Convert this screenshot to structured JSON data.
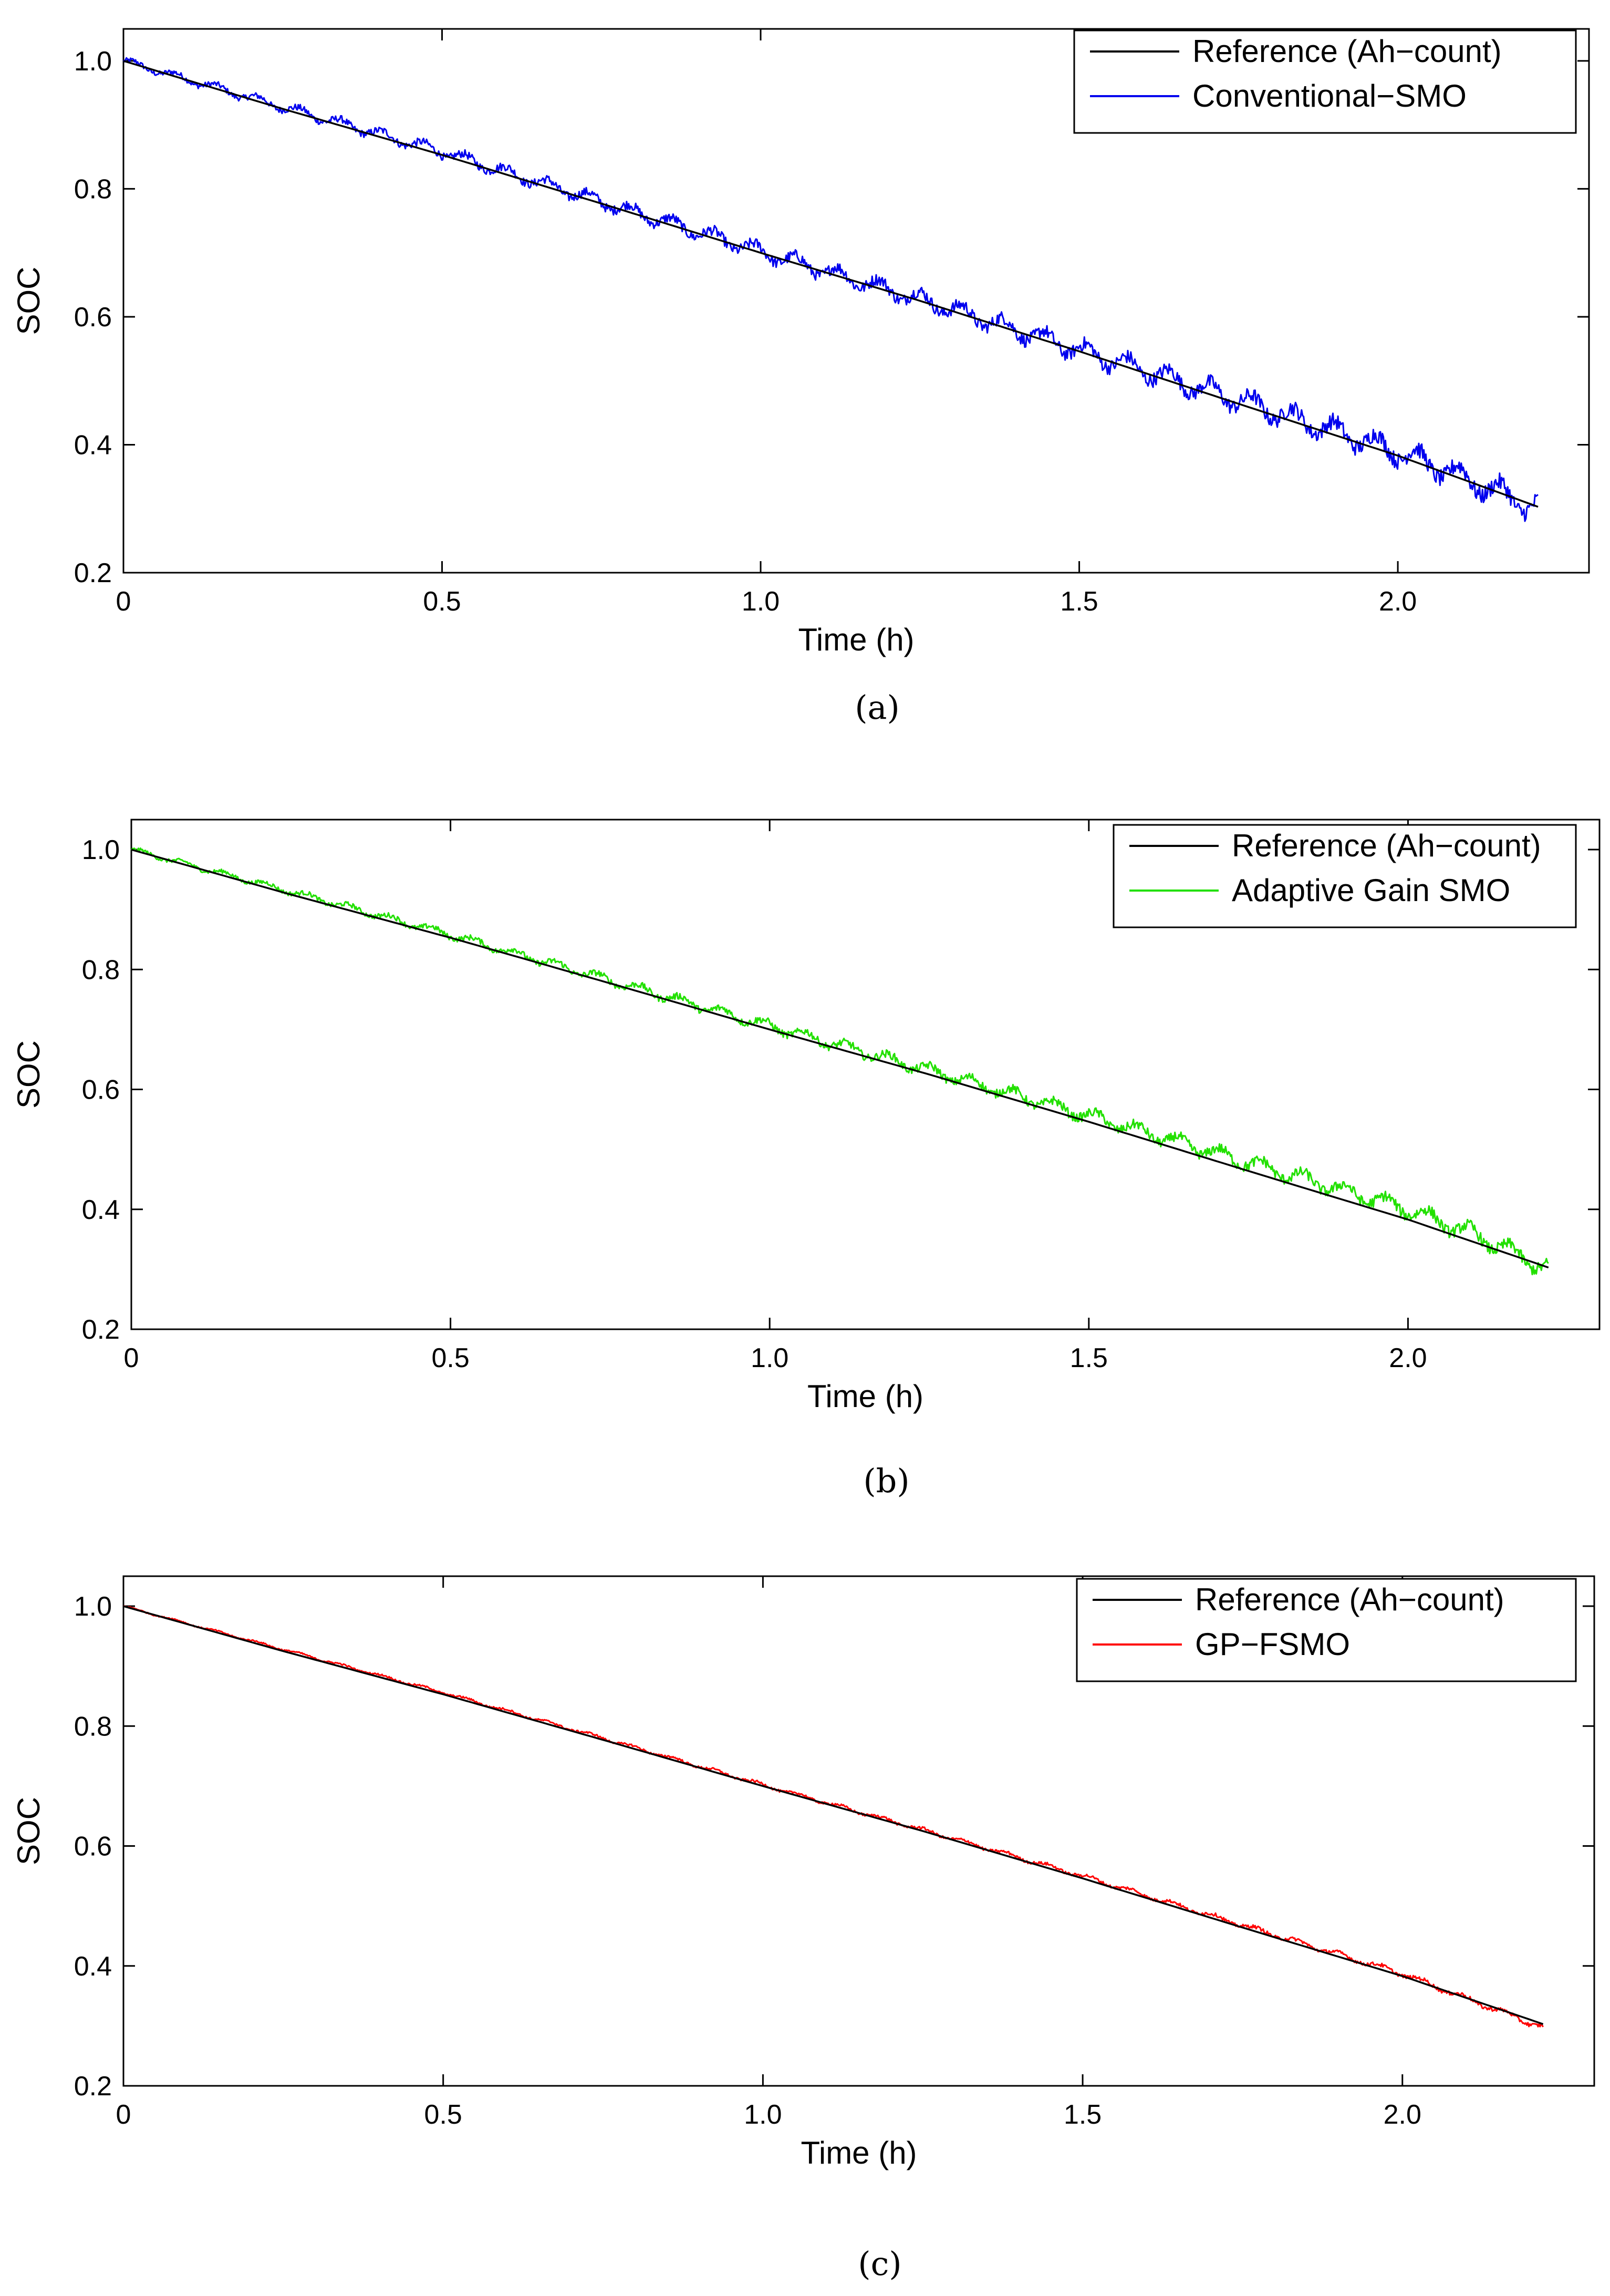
{
  "chart_data": [
    {
      "type": "line",
      "caption_open": "(",
      "caption_letter": "a",
      "caption_close": ")",
      "xlabel": "Time (h)",
      "ylabel": "SOC",
      "xlim": [
        0,
        2.3
      ],
      "ylim": [
        0.2,
        1.05
      ],
      "xticks": [
        0,
        0.5,
        1.0,
        1.5,
        2.0
      ],
      "xtick_labels": [
        "0",
        "0.5",
        "1.0",
        "1.5",
        "2.0"
      ],
      "yticks": [
        0.2,
        0.4,
        0.6,
        0.8,
        1.0
      ],
      "ytick_labels": [
        "0.2",
        "0.4",
        "0.6",
        "0.8",
        "1.0"
      ],
      "legend_position": "top-right",
      "series": [
        {
          "name": "Reference (Ah−count)",
          "color": "#000000",
          "x": [
            0,
            0.25,
            0.5,
            0.75,
            1.0,
            1.25,
            1.5,
            1.75,
            2.0,
            2.22
          ],
          "y": [
            1.0,
            0.925,
            0.853,
            0.777,
            0.7,
            0.625,
            0.546,
            0.464,
            0.383,
            0.303
          ]
        },
        {
          "name": "Conventional−SMO",
          "color": "#0000ee",
          "x": [
            0,
            0.25,
            0.5,
            0.75,
            1.0,
            1.25,
            1.5,
            1.75,
            2.0,
            2.1,
            2.22
          ],
          "y": [
            1.0,
            0.928,
            0.858,
            0.78,
            0.702,
            0.628,
            0.548,
            0.47,
            0.39,
            0.35,
            0.3
          ],
          "noise_amplitude": 0.025
        }
      ]
    },
    {
      "type": "line",
      "caption_open": "(",
      "caption_letter": "b",
      "caption_close": ")",
      "xlabel": "Time (h)",
      "ylabel": "SOC",
      "xlim": [
        0,
        2.3
      ],
      "ylim": [
        0.2,
        1.05
      ],
      "xticks": [
        0,
        0.5,
        1.0,
        1.5,
        2.0
      ],
      "xtick_labels": [
        "0",
        "0.5",
        "1.0",
        "1.5",
        "2.0"
      ],
      "yticks": [
        0.2,
        0.4,
        0.6,
        0.8,
        1.0
      ],
      "ytick_labels": [
        "0.2",
        "0.4",
        "0.6",
        "0.8",
        "1.0"
      ],
      "legend_position": "top-right",
      "series": [
        {
          "name": "Reference (Ah−count)",
          "color": "#000000",
          "x": [
            0,
            0.25,
            0.5,
            0.75,
            1.0,
            1.25,
            1.5,
            1.75,
            2.0,
            2.22
          ],
          "y": [
            1.0,
            0.925,
            0.853,
            0.777,
            0.7,
            0.625,
            0.546,
            0.464,
            0.383,
            0.303
          ]
        },
        {
          "name": "Adaptive Gain SMO",
          "color": "#22e000",
          "x": [
            0,
            0.25,
            0.5,
            0.75,
            1.0,
            1.25,
            1.5,
            1.75,
            2.0,
            2.1,
            2.22
          ],
          "y": [
            1.0,
            0.93,
            0.858,
            0.782,
            0.706,
            0.632,
            0.556,
            0.478,
            0.4,
            0.36,
            0.3
          ],
          "noise_amplitude": 0.018
        }
      ]
    },
    {
      "type": "line",
      "caption_open": "(",
      "caption_letter": "c",
      "caption_close": ")",
      "xlabel": "Time (h)",
      "ylabel": "SOC",
      "xlim": [
        0,
        2.3
      ],
      "ylim": [
        0.2,
        1.05
      ],
      "xticks": [
        0,
        0.5,
        1.0,
        1.5,
        2.0
      ],
      "xtick_labels": [
        "0",
        "0.5",
        "1.0",
        "1.5",
        "2.0"
      ],
      "yticks": [
        0.2,
        0.4,
        0.6,
        0.8,
        1.0
      ],
      "ytick_labels": [
        "0.2",
        "0.4",
        "0.6",
        "0.8",
        "1.0"
      ],
      "legend_position": "top-right",
      "series": [
        {
          "name": "Reference (Ah−count)",
          "color": "#000000",
          "x": [
            0,
            0.25,
            0.5,
            0.75,
            1.0,
            1.25,
            1.5,
            1.75,
            2.0,
            2.22
          ],
          "y": [
            1.0,
            0.925,
            0.853,
            0.777,
            0.7,
            0.625,
            0.546,
            0.464,
            0.383,
            0.303
          ]
        },
        {
          "name": "GP−FSMO",
          "color": "#ff0000",
          "x": [
            0,
            0.25,
            0.5,
            0.75,
            1.0,
            1.25,
            1.5,
            1.75,
            2.0,
            2.22
          ],
          "y": [
            1.0,
            0.928,
            0.856,
            0.78,
            0.702,
            0.627,
            0.55,
            0.468,
            0.387,
            0.297
          ],
          "noise_amplitude": 0.006
        }
      ]
    }
  ]
}
